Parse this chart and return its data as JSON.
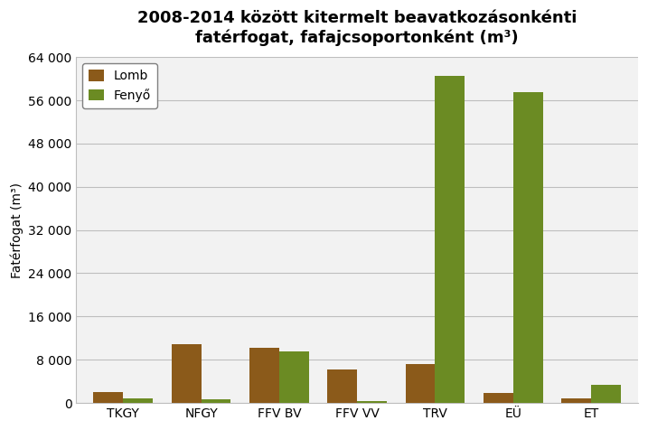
{
  "title": "2008-2014 között kitermelt beavatkozásonkénti\nfatérfogat, fafajcsoportonként (m³)",
  "ylabel": "Fatérfogat (m³)",
  "categories": [
    "TKGY",
    "NFGY",
    "FFV BV",
    "FFV VV",
    "TRV",
    "EÜ",
    "ET"
  ],
  "lomb": [
    2000,
    10800,
    10200,
    6200,
    7200,
    1800,
    900
  ],
  "fenyo": [
    800,
    700,
    9600,
    400,
    60500,
    57500,
    3300
  ],
  "lomb_color": "#8B5A1A",
  "fenyo_color": "#6B8B23",
  "lomb_label": "Lomb",
  "fenyo_label": "Fenyő",
  "ylim": [
    0,
    64000
  ],
  "yticks": [
    0,
    8000,
    16000,
    24000,
    32000,
    40000,
    48000,
    56000,
    64000
  ],
  "ytick_labels": [
    "0",
    "8 000",
    "16 000",
    "24 000",
    "32 000",
    "40 000",
    "48 000",
    "56 000",
    "64 000"
  ],
  "plot_bg_color": "#F2F2F2",
  "fig_bg_color": "#FFFFFF",
  "grid_color": "#BEBEBE",
  "bar_width": 0.38,
  "title_fontsize": 13,
  "axis_label_fontsize": 10,
  "tick_fontsize": 10,
  "legend_fontsize": 10
}
